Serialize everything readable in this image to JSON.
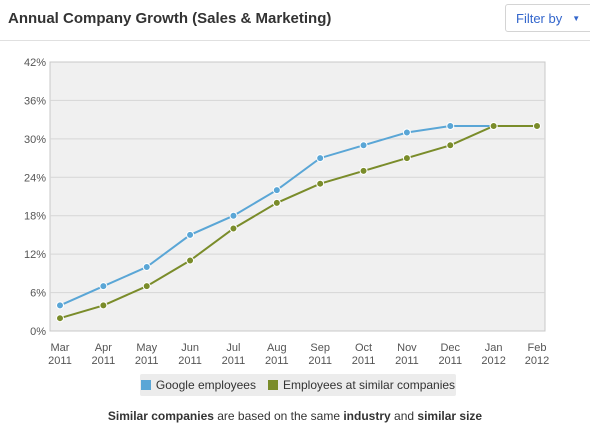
{
  "header": {
    "title": "Annual Company Growth (Sales & Marketing)",
    "filter_label": "Filter by"
  },
  "colors": {
    "google": "#5aa6d6",
    "similar": "#7a8c2a",
    "plot_bg": "#f0f0f0",
    "grid": "#d6d6d6"
  },
  "legend": {
    "google_label": "Google employees",
    "similar_label": "Employees at similar companies"
  },
  "footnote": {
    "part1": "Similar companies",
    "part2": " are based on the same ",
    "part3": "industry",
    "part4": " and ",
    "part5": "similar size"
  },
  "chart_data": {
    "type": "line",
    "title": "Annual Company Growth (Sales & Marketing)",
    "xlabel": "",
    "ylabel": "",
    "categories": [
      [
        "Mar",
        "2011"
      ],
      [
        "Apr",
        "2011"
      ],
      [
        "May",
        "2011"
      ],
      [
        "Jun",
        "2011"
      ],
      [
        "Jul",
        "2011"
      ],
      [
        "Aug",
        "2011"
      ],
      [
        "Sep",
        "2011"
      ],
      [
        "Oct",
        "2011"
      ],
      [
        "Nov",
        "2011"
      ],
      [
        "Dec",
        "2011"
      ],
      [
        "Jan",
        "2012"
      ],
      [
        "Feb",
        "2012"
      ]
    ],
    "y_ticks": [
      "0%",
      "6%",
      "12%",
      "18%",
      "24%",
      "30%",
      "36%",
      "42%"
    ],
    "ylim": [
      0,
      42
    ],
    "grid": true,
    "legend_position": "bottom",
    "series": [
      {
        "name": "Google employees",
        "color": "#5aa6d6",
        "values": [
          4,
          7,
          10,
          15,
          18,
          22,
          27,
          29,
          31,
          32,
          32,
          null
        ]
      },
      {
        "name": "Employees at similar companies",
        "color": "#7a8c2a",
        "values": [
          2,
          4,
          7,
          11,
          16,
          20,
          23,
          25,
          27,
          29,
          32,
          32
        ]
      }
    ]
  }
}
